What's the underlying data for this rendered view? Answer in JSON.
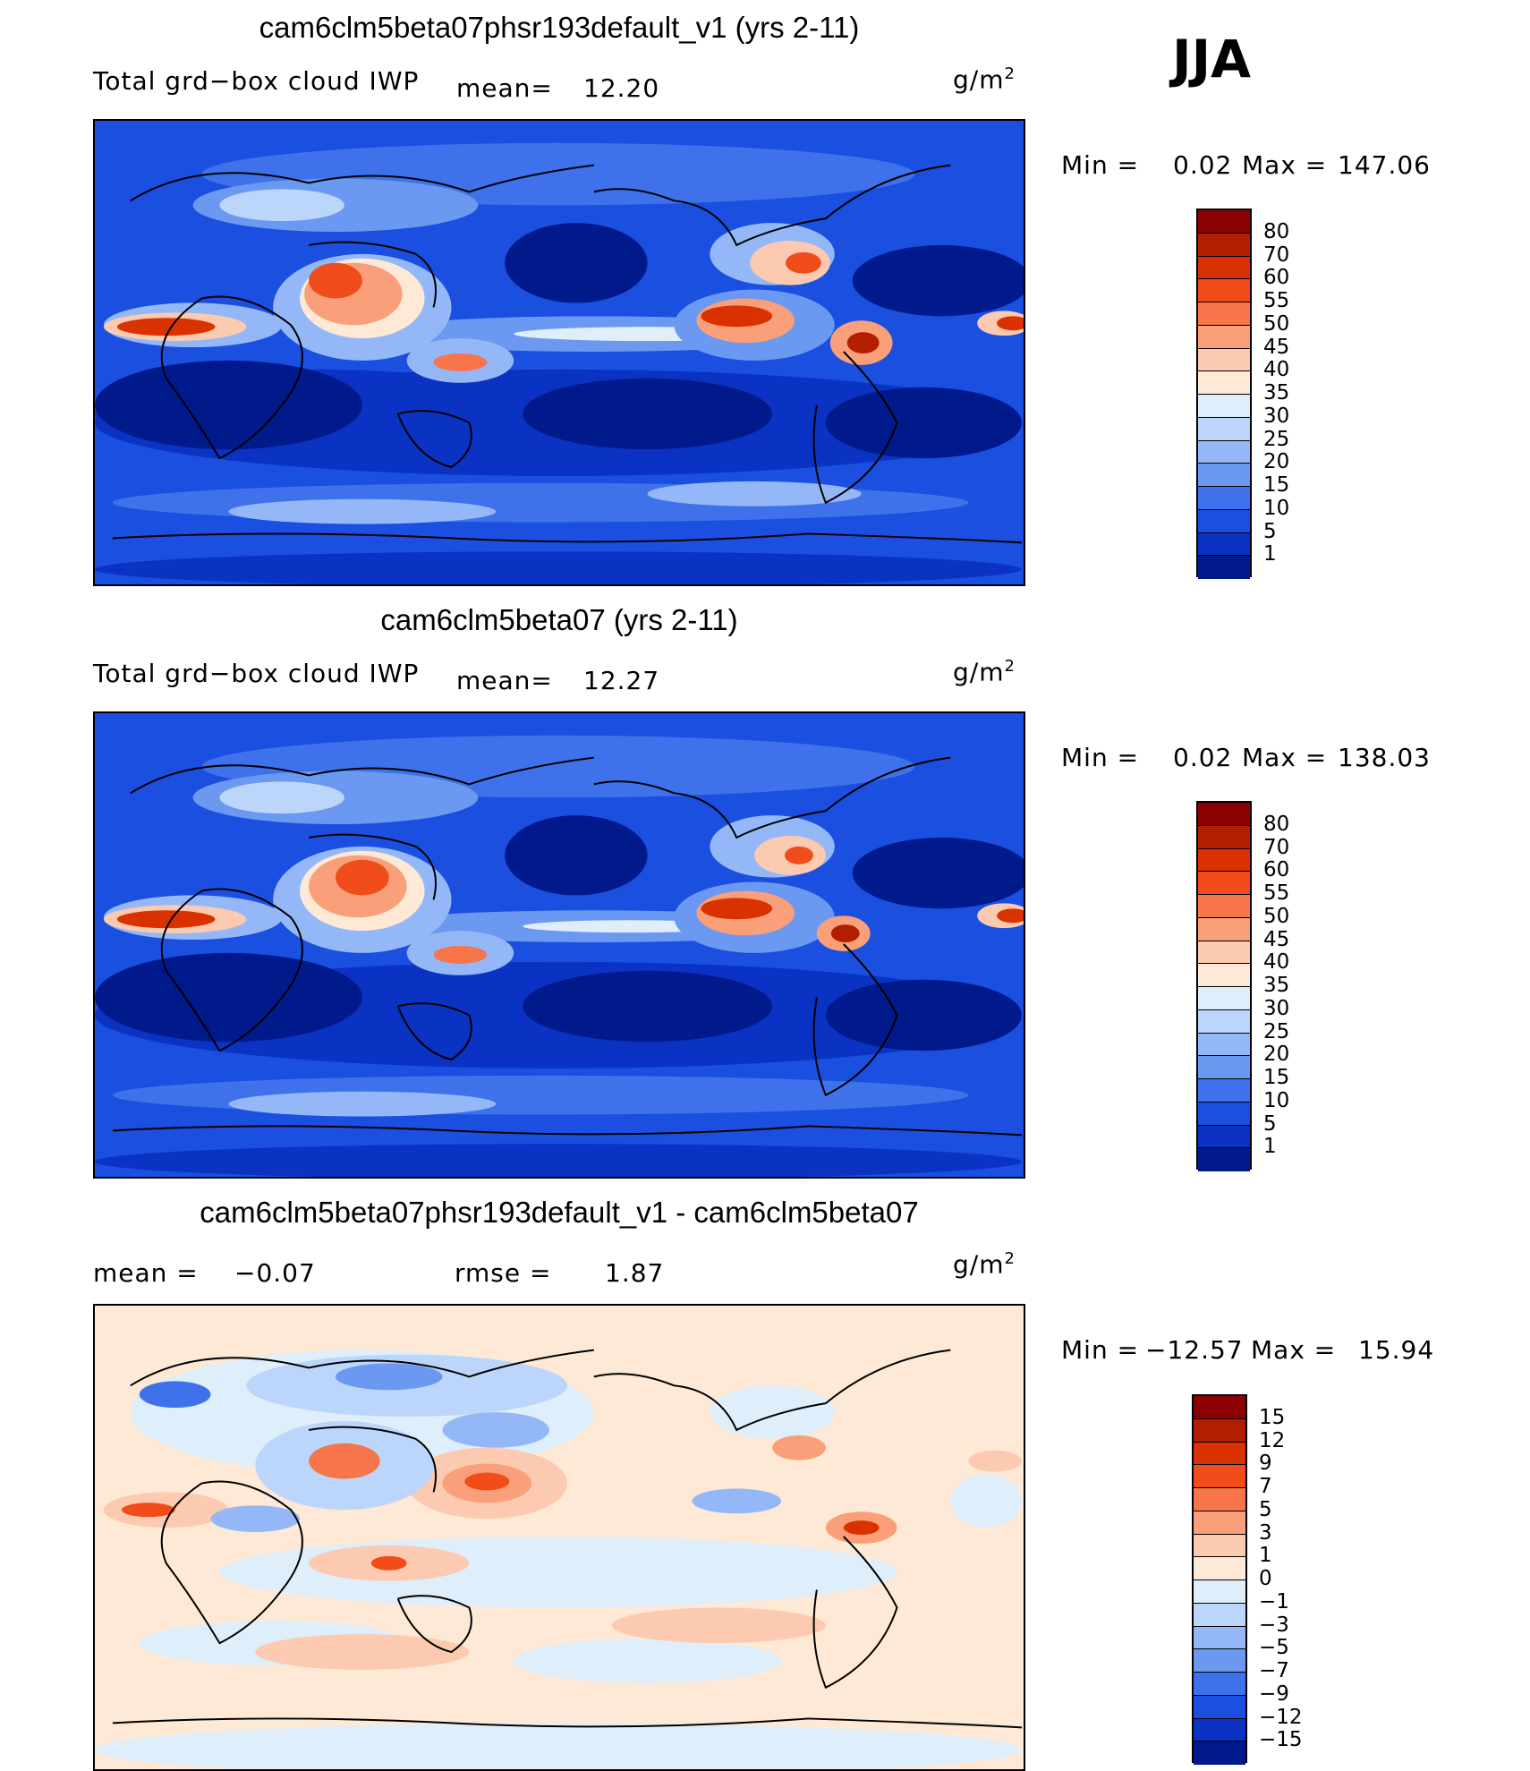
{
  "season": "JJA",
  "panels": [
    {
      "id": "test",
      "title": "cam6clm5beta07phsr193default_v1 (yrs 2-11)",
      "field_label": "Total grd−box cloud IWP",
      "mean_label": "mean=",
      "mean_value": "12.20",
      "units": "g/m",
      "units_exp": "2",
      "minmax": {
        "min_label": "Min  =",
        "min_value": "0.02",
        "max_label": "Max  =",
        "max_value": "147.06"
      },
      "colorbar": {
        "levels": [
          "80",
          "70",
          "60",
          "55",
          "50",
          "45",
          "40",
          "35",
          "30",
          "25",
          "20",
          "15",
          "10",
          "5",
          "1"
        ],
        "colors": [
          "#8b0000",
          "#b31d00",
          "#d93200",
          "#f04d1a",
          "#f7754a",
          "#f9a07a",
          "#fbcab0",
          "#fde9d6",
          "#dfeefb",
          "#bcd6fb",
          "#94b8f7",
          "#6b98f0",
          "#3f72ea",
          "#1a4fe0",
          "#0a33c4",
          "#001a8c"
        ]
      }
    },
    {
      "id": "control",
      "title": "cam6clm5beta07 (yrs 2-11)",
      "field_label": "Total grd−box cloud IWP",
      "mean_label": "mean=",
      "mean_value": "12.27",
      "units": "g/m",
      "units_exp": "2",
      "minmax": {
        "min_label": "Min  =",
        "min_value": "0.02",
        "max_label": "Max  =",
        "max_value": "138.03"
      },
      "colorbar": {
        "levels": [
          "80",
          "70",
          "60",
          "55",
          "50",
          "45",
          "40",
          "35",
          "30",
          "25",
          "20",
          "15",
          "10",
          "5",
          "1"
        ],
        "colors": [
          "#8b0000",
          "#b31d00",
          "#d93200",
          "#f04d1a",
          "#f7754a",
          "#f9a07a",
          "#fbcab0",
          "#fde9d6",
          "#dfeefb",
          "#bcd6fb",
          "#94b8f7",
          "#6b98f0",
          "#3f72ea",
          "#1a4fe0",
          "#0a33c4",
          "#001a8c"
        ]
      }
    },
    {
      "id": "diff",
      "title": "cam6clm5beta07phsr193default_v1 - cam6clm5beta07",
      "mean_label": "mean  =",
      "mean_value": "−0.07",
      "rmse_label": "rmse  =",
      "rmse_value": "1.87",
      "units": "g/m",
      "units_exp": "2",
      "minmax": {
        "min_label": "Min  =",
        "min_value": "−12.57",
        "max_label": "Max  =",
        "max_value": "15.94"
      },
      "colorbar": {
        "levels": [
          "15",
          "12",
          "9",
          "7",
          "5",
          "3",
          "1",
          "0",
          "−1",
          "−3",
          "−5",
          "−7",
          "−9",
          "−12",
          "−15"
        ],
        "colors": [
          "#8b0000",
          "#b31d00",
          "#d93200",
          "#f04d1a",
          "#f7754a",
          "#f9a07a",
          "#fbcab0",
          "#fde9d6",
          "#dfeefb",
          "#bcd6fb",
          "#94b8f7",
          "#6b98f0",
          "#3f72ea",
          "#1a4fe0",
          "#0a33c4",
          "#001a8c"
        ]
      }
    }
  ]
}
